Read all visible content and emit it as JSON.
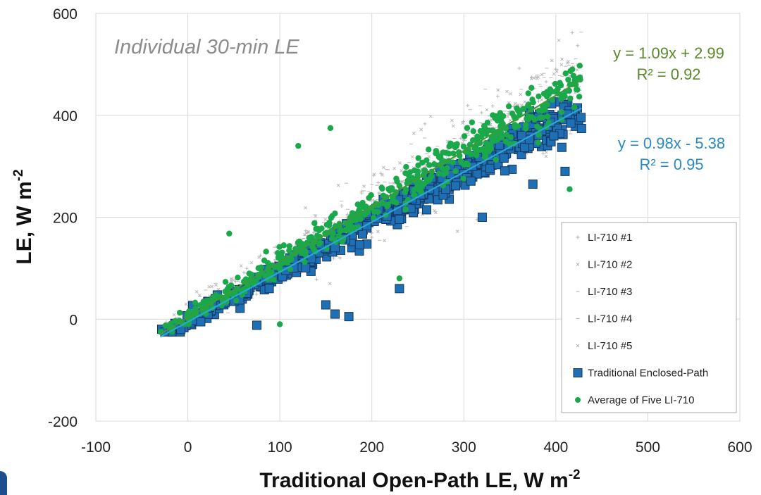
{
  "chart_data": {
    "type": "scatter",
    "title": "Individual 30-min LE",
    "xlabel": "Traditional Open-Path LE, W m",
    "xlabel_sup": "-2",
    "ylabel": "LE, W m",
    "ylabel_sup": "-2",
    "xlim": [
      -100,
      600
    ],
    "ylim": [
      -200,
      600
    ],
    "x_ticks": [
      -100,
      0,
      100,
      200,
      300,
      400,
      500,
      600
    ],
    "y_ticks": [
      -200,
      0,
      200,
      400,
      600
    ],
    "x_tick_labels": [
      "-100",
      "0",
      "100",
      "200",
      "300",
      "400",
      "500",
      "600"
    ],
    "y_tick_labels": [
      "-200",
      "0",
      "200",
      "400",
      "600"
    ],
    "grid": true,
    "legend_position": "bottom-right",
    "x_range_of_data": [
      -30,
      428
    ],
    "series": [
      {
        "name": "LI-710 #1",
        "marker": "plus",
        "color": "#b8b8b8",
        "slope": 1.09,
        "intercept": 2.99,
        "scatter_sd": 45,
        "count": 180
      },
      {
        "name": "LI-710 #2",
        "marker": "cross",
        "color": "#b8b8b8",
        "slope": 1.09,
        "intercept": 2.99,
        "scatter_sd": 45,
        "count": 180
      },
      {
        "name": "LI-710 #3",
        "marker": "dash",
        "color": "#b8b8b8",
        "slope": 1.09,
        "intercept": 2.99,
        "scatter_sd": 45,
        "count": 180
      },
      {
        "name": "LI-710 #4",
        "marker": "dash",
        "color": "#b8b8b8",
        "slope": 1.09,
        "intercept": 2.99,
        "scatter_sd": 45,
        "count": 180
      },
      {
        "name": "LI-710 #5",
        "marker": "cross",
        "color": "#b8b8b8",
        "slope": 1.09,
        "intercept": 2.99,
        "scatter_sd": 45,
        "count": 180
      },
      {
        "name": "Traditional Enclosed-Path",
        "marker": "square",
        "color": "#1f6fb5",
        "stroke": "#15365e",
        "slope": 0.98,
        "intercept": -5.38,
        "scatter_sd": 22,
        "count": 520,
        "outliers": [
          [
            150,
            28
          ],
          [
            160,
            10
          ],
          [
            175,
            5
          ],
          [
            230,
            60
          ],
          [
            75,
            -12
          ],
          [
            320,
            200
          ],
          [
            375,
            265
          ],
          [
            410,
            290
          ]
        ]
      },
      {
        "name": "Average of Five LI-710",
        "marker": "circle",
        "color": "#1aa84b",
        "slope": 1.09,
        "intercept": 2.99,
        "scatter_sd": 24,
        "count": 520,
        "outliers": [
          [
            45,
            168
          ],
          [
            120,
            340
          ],
          [
            155,
            375
          ],
          [
            230,
            80
          ],
          [
            100,
            -10
          ],
          [
            415,
            255
          ]
        ]
      }
    ],
    "trendlines": [
      {
        "name": "fit-green",
        "slope": 1.09,
        "intercept": 2.99,
        "color": "#3f9b3a",
        "x_range": [
          -30,
          428
        ]
      },
      {
        "name": "fit-blue",
        "slope": 0.98,
        "intercept": -5.38,
        "color": "#2aa8d6",
        "x_range": [
          -30,
          428
        ]
      }
    ],
    "annotations": [
      {
        "name": "green-equation",
        "line1": "y = 1.09x + 2.99",
        "line2": "R² = 0.92",
        "color": "#5a8a2c"
      },
      {
        "name": "blue-equation",
        "line1": "y = 0.98x - 5.38",
        "line2": "R² = 0.95",
        "color": "#2a8ac6"
      }
    ]
  }
}
